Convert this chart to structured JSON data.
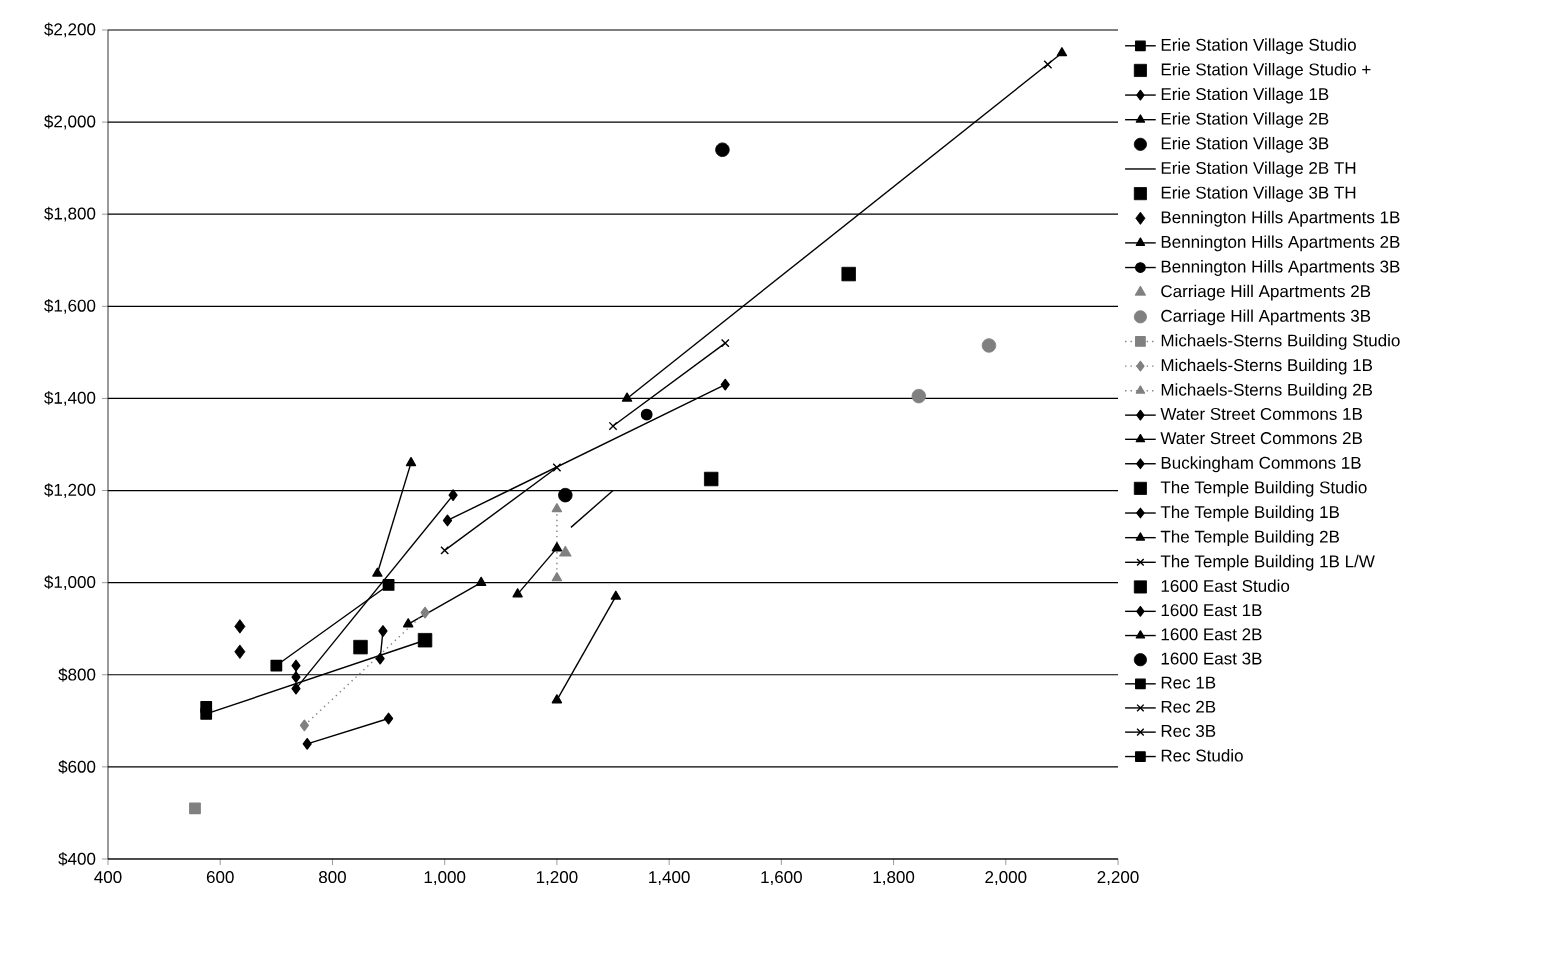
{
  "chart_data": {
    "type": "scatter",
    "xlim": [
      400,
      2200
    ],
    "ylim": [
      400,
      2200
    ],
    "xticks": [
      400,
      600,
      800,
      {
        "value": 1000,
        "label": "1,000"
      },
      {
        "value": 1200,
        "label": "1,200"
      },
      {
        "value": 1400,
        "label": "1,400"
      },
      {
        "value": 1600,
        "label": "1,600"
      },
      {
        "value": 1800,
        "label": "1,800"
      },
      {
        "value": 2000,
        "label": "2,000"
      },
      {
        "value": 2200,
        "label": "2,200"
      }
    ],
    "yticks": [
      {
        "value": 400,
        "label": "$400"
      },
      {
        "value": 600,
        "label": "$600"
      },
      {
        "value": 800,
        "label": "$800"
      },
      {
        "value": 1000,
        "label": "$1,000"
      },
      {
        "value": 1200,
        "label": "$1,200"
      },
      {
        "value": 1400,
        "label": "$1,400"
      },
      {
        "value": 1600,
        "label": "$1,600"
      },
      {
        "value": 1800,
        "label": "$1,800"
      },
      {
        "value": 2000,
        "label": "$2,000"
      },
      {
        "value": 2200,
        "label": "$2,200"
      }
    ],
    "grid": "y",
    "legend": "right",
    "series": [
      {
        "name": "Erie Station Village Studio",
        "type": "line",
        "marker": "square",
        "line_style": "solid",
        "color": "#000000",
        "x": [
          575
        ],
        "values": [
          730
        ]
      },
      {
        "name": "Erie Station Village Studio +",
        "marker": "square",
        "color": "#000000",
        "x": [
          1475
        ],
        "values": [
          1225
        ]
      },
      {
        "name": "Erie Station Village 1B",
        "type": "line",
        "marker": "diamond",
        "line_style": "solid",
        "color": "#000000",
        "x": [
          735,
          735
        ],
        "values": [
          820,
          795
        ]
      },
      {
        "name": "Erie Station Village 2B",
        "type": "line",
        "marker": "triangle",
        "line_style": "solid",
        "color": "#000000",
        "x": [
          935,
          1065
        ],
        "values": [
          910,
          1000
        ]
      },
      {
        "name": "Erie Station Village 3B",
        "marker": "circle",
        "color": "#000000",
        "x": [
          1495
        ],
        "values": [
          1940
        ]
      },
      {
        "name": "Erie Station Village 2B TH",
        "type": "line",
        "marker": "none",
        "line_style": "solid",
        "color": "#000000",
        "x": [
          1225,
          1300
        ],
        "values": [
          1120,
          1200
        ]
      },
      {
        "name": "Erie Station Village 3B TH",
        "marker": "square",
        "color": "#000000",
        "x": [
          1720
        ],
        "values": [
          1670
        ]
      },
      {
        "name": "Bennington Hills Apartments 1B",
        "marker": "diamond",
        "color": "#000000",
        "x": [
          635,
          635
        ],
        "values": [
          905,
          850
        ]
      },
      {
        "name": "Bennington Hills Apartments 2B",
        "type": "line",
        "marker": "triangle",
        "line_style": "solid",
        "color": "#000000",
        "x": [
          880,
          940
        ],
        "values": [
          1020,
          1260
        ]
      },
      {
        "name": "Bennington Hills Apartments 3B",
        "type": "line",
        "marker": "circle",
        "line_style": "solid",
        "color": "#000000",
        "x": [
          1360
        ],
        "values": [
          1365
        ]
      },
      {
        "name": "Carriage Hill Apartments 2B",
        "marker": "triangle",
        "color": "#808080",
        "x": [
          1215
        ],
        "values": [
          1065
        ]
      },
      {
        "name": "Carriage Hill Apartments 3B",
        "marker": "circle",
        "color": "#808080",
        "x": [
          1845,
          1970
        ],
        "values": [
          1405,
          1515
        ]
      },
      {
        "name": "Michaels-Sterns Building Studio",
        "type": "line",
        "marker": "square",
        "line_style": "dotted",
        "color": "#808080",
        "x": [
          555
        ],
        "values": [
          510
        ]
      },
      {
        "name": "Michaels-Sterns Building 1B",
        "type": "line",
        "marker": "diamond",
        "line_style": "dotted",
        "color": "#808080",
        "x": [
          750,
          965
        ],
        "values": [
          690,
          935
        ]
      },
      {
        "name": "Michaels-Sterns Building 2B",
        "type": "line",
        "marker": "triangle",
        "line_style": "dotted",
        "color": "#808080",
        "x": [
          1200,
          1200
        ],
        "values": [
          1160,
          1010
        ]
      },
      {
        "name": "Water Street Commons 1B",
        "type": "line",
        "marker": "diamond",
        "line_style": "solid",
        "color": "#000000",
        "x": [
          890,
          885
        ],
        "values": [
          895,
          835
        ]
      },
      {
        "name": "Water Street Commons 2B",
        "type": "line",
        "marker": "triangle",
        "line_style": "solid",
        "color": "#000000",
        "x": [
          1130,
          1200
        ],
        "values": [
          975,
          1075
        ]
      },
      {
        "name": "Buckingham Commons 1B",
        "type": "line",
        "marker": "diamond",
        "line_style": "solid",
        "color": "#000000",
        "x": [
          735,
          1015
        ],
        "values": [
          770,
          1190
        ]
      },
      {
        "name": "The Temple Building Studio",
        "marker": "square",
        "color": "#000000",
        "x": [
          850
        ],
        "values": [
          860
        ]
      },
      {
        "name": "The Temple Building 1B",
        "type": "line",
        "marker": "diamond",
        "line_style": "solid",
        "color": "#000000",
        "x": [
          1005,
          1500
        ],
        "values": [
          1135,
          1430
        ]
      },
      {
        "name": "The Temple Building 2B",
        "type": "line",
        "marker": "triangle",
        "line_style": "solid",
        "color": "#000000",
        "x": [
          1325,
          2100
        ],
        "values": [
          1400,
          2150
        ]
      },
      {
        "name": "The Temple Building 1B L/W",
        "type": "line",
        "marker": "cross",
        "line_style": "solid",
        "color": "#000000",
        "x": [
          2075
        ],
        "values": [
          2125
        ]
      },
      {
        "name": "1600 East Studio",
        "marker": "square",
        "color": "#000000",
        "x": [
          965
        ],
        "values": [
          875
        ]
      },
      {
        "name": "1600 East 1B",
        "type": "line",
        "marker": "diamond",
        "line_style": "solid",
        "color": "#000000",
        "x": [
          755,
          900
        ],
        "values": [
          650,
          705
        ]
      },
      {
        "name": "1600 East 2B",
        "type": "line",
        "marker": "triangle",
        "line_style": "solid",
        "color": "#000000",
        "x": [
          1200,
          1305
        ],
        "values": [
          745,
          970
        ]
      },
      {
        "name": "1600 East 3B",
        "marker": "circle",
        "color": "#000000",
        "x": [
          1215
        ],
        "values": [
          1190
        ]
      },
      {
        "name": "Rec 1B",
        "type": "line",
        "marker": "square",
        "line_style": "solid",
        "color": "#000000",
        "x": [
          700,
          900
        ],
        "values": [
          820,
          995
        ]
      },
      {
        "name": "Rec 2B",
        "type": "line",
        "marker": "cross",
        "line_style": "solid",
        "color": "#000000",
        "x": [
          1000,
          1200
        ],
        "values": [
          1070,
          1250
        ]
      },
      {
        "name": "Rec 3B",
        "type": "line",
        "marker": "cross",
        "line_style": "solid",
        "color": "#000000",
        "x": [
          1300,
          1500
        ],
        "values": [
          1340,
          1520
        ]
      },
      {
        "name": "Rec Studio",
        "type": "line",
        "marker": "square",
        "line_style": "solid",
        "color": "#000000",
        "x": [
          575,
          965
        ],
        "values": [
          715,
          875
        ]
      }
    ]
  }
}
